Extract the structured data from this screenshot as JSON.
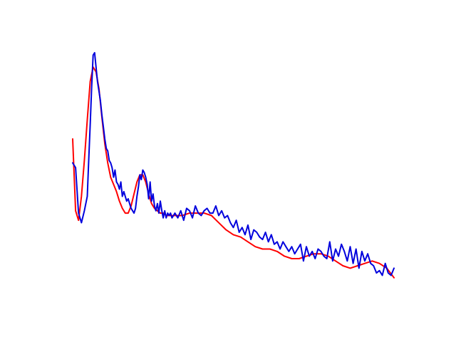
{
  "chart_data": {
    "type": "line",
    "title": "",
    "xlabel": "",
    "ylabel": "",
    "axes_visible": false,
    "grid": false,
    "legend": "none",
    "xlim": [
      0,
      220
    ],
    "ylim": [
      0,
      100
    ],
    "series": [
      {
        "color": "#ff0000",
        "kind": "smooth-fit",
        "x": [
          0,
          2,
          4,
          6,
          8,
          10,
          12,
          14,
          16,
          18,
          20,
          22,
          24,
          26,
          28,
          30,
          32,
          34,
          36,
          38,
          40,
          42,
          44,
          46,
          48,
          50,
          52,
          54,
          56,
          58,
          60,
          62,
          64,
          66,
          68,
          70,
          75,
          80,
          85,
          90,
          95,
          100,
          105,
          110,
          115,
          120,
          125,
          130,
          135,
          140,
          145,
          150,
          155,
          160,
          165,
          170,
          175,
          180,
          185,
          190,
          195,
          200,
          205,
          210,
          215,
          220
        ],
        "y": [
          64,
          34,
          30,
          40,
          55,
          72,
          88,
          94,
          92,
          85,
          73,
          62,
          54,
          48,
          45,
          42,
          38,
          35,
          33,
          33,
          36,
          41,
          46,
          49,
          49,
          46,
          41,
          37,
          35,
          34,
          33,
          33,
          32,
          32,
          32,
          32,
          32,
          33,
          33,
          33,
          32,
          29,
          26,
          24,
          23,
          21,
          19,
          18,
          18,
          17,
          15,
          14,
          14,
          15,
          16,
          16,
          15,
          13,
          11,
          10,
          11,
          12,
          13,
          12,
          10,
          6
        ]
      },
      {
        "color": "#0000dd",
        "kind": "noisy-data",
        "x": [
          0,
          2,
          4,
          6,
          8,
          10,
          11,
          12,
          13,
          14,
          15,
          16,
          17,
          18,
          19,
          20,
          21,
          22,
          23,
          24,
          25,
          26,
          27,
          28,
          29,
          30,
          31,
          32,
          33,
          34,
          35,
          36,
          37,
          38,
          39,
          40,
          41,
          42,
          43,
          44,
          45,
          46,
          47,
          48,
          49,
          50,
          51,
          52,
          53,
          54,
          55,
          56,
          57,
          58,
          59,
          60,
          61,
          62,
          63,
          64,
          65,
          66,
          67,
          68,
          69,
          70,
          72,
          74,
          76,
          78,
          80,
          82,
          84,
          86,
          88,
          90,
          92,
          94,
          96,
          98,
          100,
          102,
          104,
          106,
          108,
          110,
          112,
          114,
          116,
          118,
          120,
          122,
          124,
          126,
          128,
          130,
          132,
          134,
          136,
          138,
          140,
          142,
          144,
          146,
          148,
          150,
          152,
          154,
          156,
          158,
          160,
          162,
          164,
          166,
          168,
          170,
          172,
          174,
          176,
          178,
          180,
          182,
          184,
          186,
          188,
          190,
          192,
          194,
          196,
          198,
          200,
          202,
          204,
          206,
          208,
          210,
          212,
          214,
          216,
          218,
          220
        ],
        "y": [
          54,
          52,
          33,
          29,
          34,
          40,
          55,
          70,
          86,
          99,
          100,
          94,
          88,
          84,
          80,
          74,
          69,
          64,
          60,
          59,
          55,
          54,
          52,
          48,
          51,
          46,
          45,
          43,
          46,
          40,
          42,
          40,
          38,
          39,
          37,
          35,
          34,
          33,
          35,
          40,
          44,
          49,
          47,
          51,
          50,
          48,
          45,
          39,
          46,
          38,
          41,
          36,
          34,
          37,
          33,
          38,
          34,
          31,
          34,
          31,
          33,
          32,
          33,
          31,
          32,
          33,
          31,
          34,
          30,
          35,
          34,
          31,
          36,
          33,
          32,
          34,
          35,
          33,
          33,
          36,
          32,
          34,
          31,
          32,
          29,
          27,
          30,
          25,
          27,
          24,
          28,
          22,
          26,
          25,
          23,
          22,
          25,
          21,
          24,
          20,
          21,
          18,
          21,
          19,
          17,
          19,
          16,
          18,
          20,
          13,
          19,
          15,
          17,
          14,
          18,
          17,
          15,
          14,
          21,
          13,
          18,
          15,
          20,
          17,
          13,
          19,
          12,
          18,
          10,
          17,
          13,
          16,
          12,
          11,
          8,
          9,
          7,
          12,
          8,
          7,
          10
        ]
      }
    ]
  }
}
